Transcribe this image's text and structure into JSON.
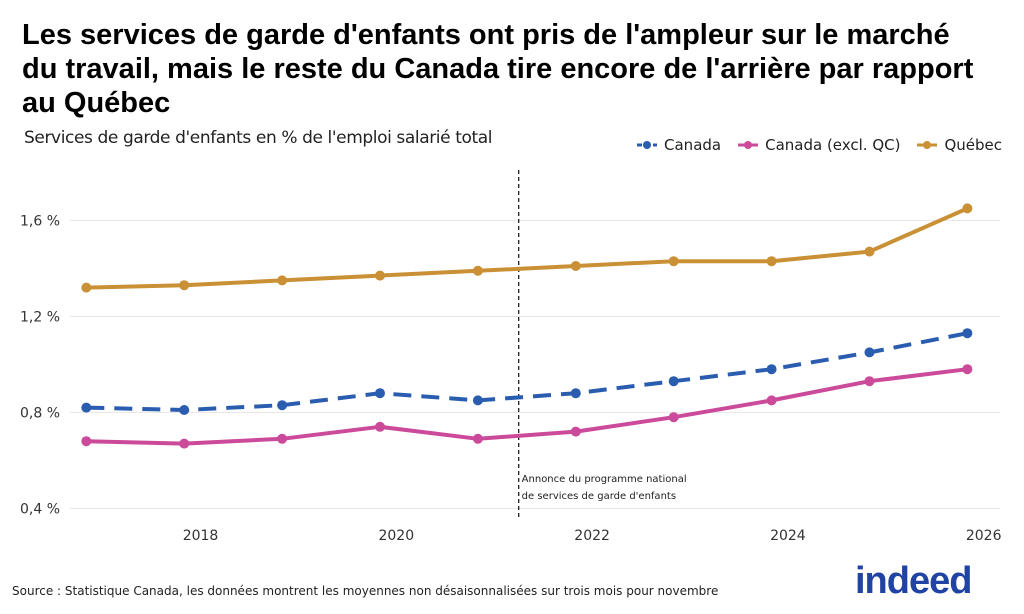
{
  "title": "Les services de garde d'enfants ont pris de l'ampleur sur le marché du travail, mais le reste du Canada tire encore de l'arrière par rapport au Québec",
  "subtitle": "Services de garde d'enfants en % de l'emploi salarié total",
  "source": "Source : Statistique Canada, les données montrent les moyennes non désaisonnalisées sur trois mois pour novembre",
  "logo": "indeed",
  "chart_data": {
    "type": "line",
    "x": [
      "2016-11",
      "2017-11",
      "2018-11",
      "2019-11",
      "2020-11",
      "2021-11",
      "2022-11",
      "2023-11",
      "2024-11",
      "2025-11"
    ],
    "series": [
      {
        "name": "Canada",
        "color": "#2a5db0",
        "dash": true,
        "values": [
          0.82,
          0.81,
          0.83,
          0.88,
          0.85,
          0.88,
          0.93,
          0.98,
          1.05,
          1.13
        ]
      },
      {
        "name": "Canada (excl. QC)",
        "color": "#cc4a9a",
        "dash": false,
        "values": [
          0.68,
          0.67,
          0.69,
          0.74,
          0.69,
          0.72,
          0.78,
          0.85,
          0.93,
          0.98
        ]
      },
      {
        "name": "Québec",
        "color": "#c99035",
        "dash": false,
        "values": [
          1.32,
          1.33,
          1.35,
          1.37,
          1.39,
          1.41,
          1.43,
          1.43,
          1.47,
          1.65
        ]
      }
    ],
    "yticks": [
      0.4,
      0.8,
      1.2,
      1.6
    ],
    "ytick_labels": [
      "0,4 %",
      "0,8 %",
      "1,2 %",
      "1,6 %"
    ],
    "xticks": [
      "2018",
      "2020",
      "2022",
      "2024",
      "2026"
    ],
    "ylim": [
      0.36,
      1.81
    ],
    "xlim": [
      "2016-09",
      "2026-03"
    ],
    "grid": "horizontal",
    "legend": "top-right",
    "annotation": {
      "x": "2021-04",
      "line1": "Annonce du programme national",
      "line2": "de services de garde d'enfants"
    }
  }
}
